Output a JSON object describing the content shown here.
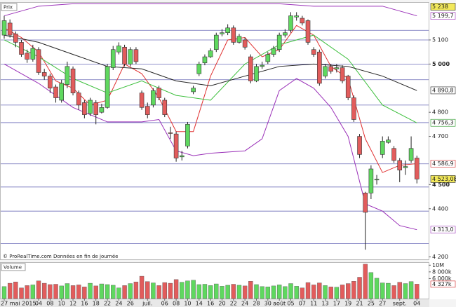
{
  "chart_data": {
    "type": "candlestick",
    "panel_label": "Prix",
    "credit": "© ProRealTime.com  Données en fin de journée",
    "up_color": "#5fd85f",
    "down_color": "#e25c5c",
    "categories": [
      "27 mai 2015",
      null,
      null,
      null,
      null,
      null,
      "04",
      null,
      "08",
      null,
      "10",
      null,
      "12",
      null,
      "16",
      null,
      "18",
      null,
      "22",
      null,
      "24",
      null,
      "26",
      null,
      null,
      "juil.",
      null,
      null,
      "06",
      null,
      "08",
      null,
      "10",
      null,
      "14",
      null,
      "16",
      null,
      "20",
      null,
      "22",
      null,
      "24",
      null,
      "28",
      null,
      "30",
      null,
      "août",
      null,
      "05",
      null,
      "07",
      null,
      "11",
      null,
      "13",
      null,
      "17",
      null,
      "19",
      null,
      "21",
      null,
      "25",
      null,
      "27",
      null,
      null,
      "sept.",
      null,
      null,
      "04"
    ],
    "open": [
      5120,
      5170,
      5125,
      5090,
      5045,
      5020,
      5060,
      4965,
      4950,
      4905,
      4850,
      4915,
      4980,
      4880,
      4840,
      4795,
      4840,
      4800,
      4820,
      4985,
      5050,
      5070,
      5000,
      5060,
      4880,
      4825,
      4830,
      4900,
      4850,
      4715,
      4710,
      4615,
      4660,
      4885,
      4960,
      5005,
      5030,
      5060,
      5125,
      5130,
      5150,
      5090,
      5100,
      5030,
      4930,
      4990,
      5010,
      5040,
      5060,
      5120,
      5140,
      5195,
      5190,
      5180,
      5060,
      5050,
      4950,
      4990,
      4980,
      4985,
      4950,
      4860,
      4700,
      4465,
      4465,
      4520,
      4625,
      4675,
      4650,
      4600,
      4570,
      4600,
      4610
    ],
    "high": [
      5200,
      5185,
      5135,
      5100,
      5060,
      5080,
      5070,
      4980,
      4960,
      4915,
      4935,
      5010,
      4990,
      4890,
      4850,
      4860,
      4850,
      4835,
      5000,
      5075,
      5090,
      5080,
      5070,
      5070,
      4890,
      4840,
      4900,
      4910,
      4860,
      4740,
      4720,
      4640,
      4760,
      4910,
      5010,
      5040,
      5065,
      5130,
      5145,
      5165,
      5160,
      5125,
      5110,
      5040,
      5000,
      5010,
      5050,
      5075,
      5130,
      5145,
      5215,
      5215,
      5200,
      5185,
      5070,
      5060,
      5000,
      5000,
      5000,
      4995,
      4955,
      4870,
      4710,
      4470,
      4580,
      4540,
      4700,
      4700,
      4660,
      4610,
      4600,
      4700,
      4620
    ],
    "low": [
      5105,
      5110,
      5070,
      5030,
      5005,
      5010,
      4955,
      4935,
      4880,
      4840,
      4840,
      4900,
      4870,
      4810,
      4775,
      4785,
      4750,
      4795,
      4815,
      4975,
      5040,
      4990,
      4990,
      5000,
      4810,
      4775,
      4820,
      4850,
      4780,
      4690,
      4595,
      4600,
      4650,
      4875,
      4950,
      4995,
      5025,
      5050,
      5115,
      5120,
      5080,
      5085,
      5060,
      4920,
      4925,
      4980,
      5000,
      5030,
      5050,
      5110,
      5130,
      5180,
      5160,
      5080,
      5030,
      4910,
      4940,
      4960,
      4965,
      4920,
      4850,
      4760,
      4610,
      4230,
      4440,
      4500,
      4610,
      4670,
      4590,
      4510,
      4540,
      4590,
      4505
    ],
    "close": [
      5180,
      5120,
      5090,
      5040,
      5020,
      5065,
      4965,
      4950,
      4900,
      4860,
      4920,
      4990,
      4880,
      4830,
      4790,
      4850,
      4790,
      4820,
      4990,
      5060,
      5075,
      5000,
      5060,
      5010,
      4820,
      4790,
      4890,
      4860,
      4790,
      4712,
      4610,
      4620,
      4750,
      4900,
      5000,
      5030,
      5055,
      5120,
      5130,
      5150,
      5090,
      5115,
      5070,
      4930,
      4990,
      4995,
      5040,
      5065,
      5120,
      5130,
      5200,
      5200,
      5170,
      5090,
      5040,
      4920,
      4990,
      4970,
      4985,
      4930,
      4860,
      4770,
      4625,
      4385,
      4565,
      4522,
      4680,
      4685,
      4600,
      4560,
      4575,
      4650,
      4523.08
    ],
    "ylim": [
      4190,
      5254
    ],
    "yticks": [
      {
        "value": 4200,
        "label": "4 200"
      },
      {
        "value": 4400,
        "label": "4 400"
      },
      {
        "value": 4500,
        "label": "4 500"
      },
      {
        "value": 4700,
        "label": "4 700"
      },
      {
        "value": 4800,
        "label": "4 800"
      },
      {
        "value": 5000,
        "label": "5 000"
      },
      {
        "value": 5100,
        "label": "5 100"
      }
    ],
    "levels": [
      5140,
      5100,
      5000,
      4935,
      4830,
      4757,
      4586,
      4490,
      4390,
      4255
    ],
    "level_color": "#6a6ab8",
    "lines": [
      {
        "color": "#e03030",
        "x": [
          0,
          3,
          6,
          9,
          12,
          15,
          18,
          21,
          24,
          27,
          30,
          33,
          36,
          39,
          42,
          45,
          48,
          51,
          54,
          57,
          60,
          63,
          66,
          69,
          72
        ],
        "values": [
          5150,
          5110,
          5050,
          4930,
          4900,
          4830,
          4850,
          5000,
          4960,
          4860,
          4720,
          4720,
          4950,
          5100,
          5110,
          5030,
          5060,
          5160,
          5120,
          4990,
          4940,
          4690,
          4550,
          4580,
          4587
        ]
      },
      {
        "color": "#3cbf3c",
        "x": [
          0,
          6,
          12,
          18,
          24,
          30,
          36,
          42,
          48,
          54,
          60,
          66,
          72
        ],
        "values": [
          5100,
          5030,
          4940,
          4880,
          4930,
          4870,
          4850,
          5000,
          5080,
          5120,
          5020,
          4830,
          4756
        ]
      },
      {
        "color": "#222222",
        "x": [
          0,
          6,
          12,
          18,
          24,
          30,
          36,
          42,
          48,
          54,
          60,
          66,
          72
        ],
        "values": [
          5120,
          5090,
          5040,
          4990,
          4980,
          4930,
          4910,
          4950,
          4990,
          5000,
          4990,
          4950,
          4890
        ]
      },
      {
        "color": "#9a30b8",
        "x": [
          0,
          6,
          12,
          24,
          36,
          48,
          54,
          60,
          66,
          72
        ],
        "values": [
          5200,
          5240,
          5250,
          5250,
          5250,
          5250,
          5240,
          5240,
          5240,
          5200
        ]
      },
      {
        "color": "#9a30b8",
        "x": [
          0,
          6,
          12,
          18,
          24,
          27,
          30,
          33,
          36,
          42,
          45,
          48,
          51,
          54,
          57,
          60,
          63,
          66,
          69,
          72
        ],
        "values": [
          5000,
          4920,
          4820,
          4760,
          4760,
          4770,
          4640,
          4620,
          4630,
          4640,
          4690,
          4890,
          4940,
          4900,
          4820,
          4700,
          4420,
          4390,
          4330,
          4313
        ]
      }
    ],
    "price_labels": [
      {
        "value": 5238,
        "label": "5 238",
        "color": "#222",
        "background": "#f2e85a"
      },
      {
        "value": 5199.7,
        "label": "5 199,7",
        "color": "#9a30b8",
        "background": "#fff"
      },
      {
        "value": 4890.8,
        "label": "4 890,8",
        "color": "#222",
        "background": "#fff"
      },
      {
        "value": 4756.3,
        "label": "4 756,3",
        "color": "#2a9a2a",
        "background": "#fff"
      },
      {
        "value": 4586.9,
        "label": "4 586,9",
        "color": "#d02020",
        "background": "#fff"
      },
      {
        "value": 4523.08,
        "label": "4 523,08",
        "color": "#222",
        "background": "#f2e85a"
      },
      {
        "value": 4313.0,
        "label": "4 313,0",
        "color": "#9a30b8",
        "background": "#fff"
      }
    ],
    "volume": {
      "label": "Volume",
      "values": [
        3600,
        4600,
        5000,
        3200,
        3900,
        4100,
        5300,
        4600,
        4200,
        4300,
        3800,
        4500,
        3900,
        4100,
        3500,
        4600,
        3800,
        4400,
        4200,
        4000,
        3200,
        3900,
        4500,
        5000,
        6700,
        5100,
        4700,
        3900,
        4800,
        4600,
        5700,
        4900,
        5300,
        5500,
        4200,
        4300,
        3900,
        4400,
        3700,
        4000,
        4300,
        4000,
        3800,
        5200,
        4200,
        3600,
        3500,
        3800,
        4100,
        3600,
        4500,
        3700,
        3200,
        4800,
        4100,
        4700,
        3900,
        3500,
        3400,
        4100,
        4500,
        5200,
        6400,
        10300,
        7800,
        6100,
        4700,
        4600,
        3900,
        4900,
        4500,
        5100,
        4327
      ],
      "ylim": [
        0,
        10700
      ],
      "yticks": [
        {
          "value": 6000,
          "label": "6 000k"
        },
        {
          "value": 8000,
          "label": "8 000k"
        },
        {
          "value": 10000,
          "label": "10M"
        }
      ],
      "last_label": {
        "value": 4327,
        "label": "4 327k",
        "color": "#d02020"
      }
    }
  }
}
